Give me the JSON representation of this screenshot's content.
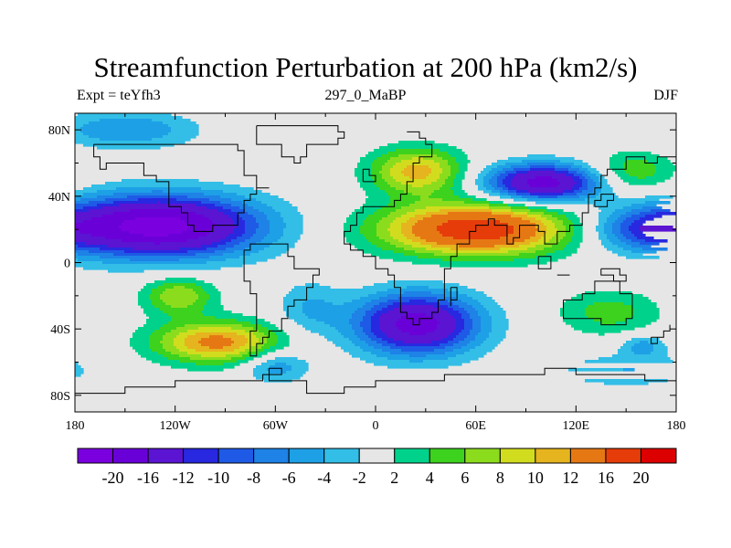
{
  "figure": {
    "title": "Streamfunction Perturbation at 200 hPa (km2/s)",
    "left_label": "Expt = teYfh3",
    "center_label": "297_0_MaBP",
    "right_label": "DJF"
  },
  "map": {
    "lon_range": [
      -180,
      180
    ],
    "lat_range": [
      -90,
      90
    ],
    "background_color": "#e6e6e6",
    "coastline_color": "#000000"
  },
  "axes": {
    "x_ticks": [
      {
        "value": -180,
        "label": "180"
      },
      {
        "value": -120,
        "label": "120W"
      },
      {
        "value": -60,
        "label": "60W"
      },
      {
        "value": 0,
        "label": "0"
      },
      {
        "value": 60,
        "label": "60E"
      },
      {
        "value": 120,
        "label": "120E"
      },
      {
        "value": 180,
        "label": "180"
      }
    ],
    "y_ticks": [
      {
        "value": 80,
        "label": "80N"
      },
      {
        "value": 40,
        "label": "40N"
      },
      {
        "value": 0,
        "label": "0"
      },
      {
        "value": -40,
        "label": "40S"
      },
      {
        "value": -80,
        "label": "80S"
      }
    ]
  },
  "colorbar": {
    "colors": [
      "#7b00e0",
      "#6a00d8",
      "#5a14d2",
      "#2828e0",
      "#1e5ae6",
      "#1e82e6",
      "#1ea0e6",
      "#32bee6",
      "#e6e6e6",
      "#00d28c",
      "#3cd21e",
      "#8cdc1e",
      "#d2dc1e",
      "#e6b41e",
      "#e67814",
      "#e63c0a",
      "#dc0000"
    ],
    "labels": [
      "-20",
      "-16",
      "-12",
      "-10",
      "-8",
      "-6",
      "-4",
      "-2",
      "2",
      "4",
      "6",
      "8",
      "10",
      "12",
      "16",
      "20"
    ]
  },
  "field": {
    "blobs": [
      {
        "lon": -130,
        "lat": 22,
        "slon": 42,
        "slat": 13,
        "amp": -22
      },
      {
        "lon": 60,
        "lat": 20,
        "slon": 40,
        "slat": 11,
        "amp": 19
      },
      {
        "lon": 25,
        "lat": 55,
        "slon": 20,
        "slat": 10,
        "amp": 11
      },
      {
        "lon": 100,
        "lat": 48,
        "slon": 24,
        "slat": 8,
        "amp": -18
      },
      {
        "lon": 25,
        "lat": -37,
        "slon": 26,
        "slat": 13,
        "amp": -18
      },
      {
        "lon": -95,
        "lat": -48,
        "slon": 27,
        "slat": 9,
        "amp": 13
      },
      {
        "lon": -118,
        "lat": -20,
        "slon": 15,
        "slat": 8,
        "amp": 8
      },
      {
        "lon": -150,
        "lat": 80,
        "slon": 30,
        "slat": 8,
        "amp": -6
      },
      {
        "lon": -60,
        "lat": -62,
        "slon": 14,
        "slat": 7,
        "amp": -6
      },
      {
        "lon": -40,
        "lat": -28,
        "slon": 14,
        "slat": 12,
        "amp": -4
      },
      {
        "lon": 160,
        "lat": 20,
        "slon": 24,
        "slat": 9,
        "amp": -8
      },
      {
        "lon": 155,
        "lat": 55,
        "slon": 18,
        "slat": 9,
        "amp": 6
      },
      {
        "lon": 140,
        "lat": -30,
        "slon": 22,
        "slat": 10,
        "amp": 5
      },
      {
        "lon": 150,
        "lat": -65,
        "slon": 30,
        "slat": 7,
        "amp": -4
      },
      {
        "lon": 160,
        "lat": -50,
        "slon": 10,
        "slat": 5,
        "amp": -5
      }
    ]
  },
  "coastlines": [
    [
      [
        20,
        80
      ],
      [
        28,
        76
      ],
      [
        30,
        70
      ],
      [
        32,
        64
      ],
      [
        26,
        60
      ],
      [
        24,
        54
      ],
      [
        22,
        48
      ],
      [
        20,
        44
      ],
      [
        18,
        42
      ],
      [
        16,
        38
      ],
      [
        14,
        36
      ],
      [
        10,
        34
      ],
      [
        0,
        32
      ],
      [
        -6,
        30
      ],
      [
        -10,
        24
      ],
      [
        -16,
        18
      ],
      [
        -18,
        12
      ],
      [
        -14,
        6
      ],
      [
        -8,
        2
      ],
      [
        0,
        -2
      ],
      [
        8,
        -6
      ],
      [
        12,
        -14
      ],
      [
        14,
        -22
      ],
      [
        16,
        -30
      ],
      [
        18,
        -34
      ],
      [
        22,
        -36
      ],
      [
        28,
        -34
      ],
      [
        32,
        -30
      ],
      [
        36,
        -24
      ],
      [
        40,
        -16
      ],
      [
        40,
        -4
      ],
      [
        44,
        2
      ],
      [
        50,
        10
      ],
      [
        56,
        18
      ],
      [
        60,
        24
      ],
      [
        66,
        26
      ],
      [
        72,
        22
      ],
      [
        78,
        10
      ],
      [
        82,
        16
      ],
      [
        88,
        22
      ],
      [
        96,
        18
      ],
      [
        100,
        12
      ],
      [
        104,
        10
      ],
      [
        110,
        18
      ],
      [
        118,
        24
      ],
      [
        122,
        30
      ],
      [
        126,
        36
      ],
      [
        128,
        42
      ],
      [
        130,
        46
      ],
      [
        136,
        52
      ],
      [
        140,
        58
      ],
      [
        150,
        62
      ],
      [
        162,
        60
      ],
      [
        170,
        64
      ],
      [
        180,
        66
      ]
    ],
    [
      [
        -170,
        70
      ],
      [
        -160,
        72
      ],
      [
        -140,
        70
      ],
      [
        -120,
        70
      ],
      [
        -100,
        70
      ],
      [
        -82,
        68
      ],
      [
        -80,
        60
      ],
      [
        -78,
        52
      ],
      [
        -70,
        46
      ],
      [
        -64,
        44
      ],
      [
        -70,
        42
      ],
      [
        -76,
        36
      ],
      [
        -80,
        30
      ],
      [
        -82,
        24
      ],
      [
        -88,
        22
      ],
      [
        -96,
        20
      ],
      [
        -104,
        18
      ],
      [
        -110,
        24
      ],
      [
        -114,
        30
      ],
      [
        -118,
        34
      ],
      [
        -124,
        40
      ],
      [
        -124,
        48
      ],
      [
        -132,
        54
      ],
      [
        -140,
        60
      ],
      [
        -150,
        60
      ],
      [
        -160,
        58
      ],
      [
        -166,
        64
      ],
      [
        -170,
        70
      ]
    ],
    [
      [
        -80,
        8
      ],
      [
        -76,
        10
      ],
      [
        -70,
        12
      ],
      [
        -62,
        10
      ],
      [
        -52,
        4
      ],
      [
        -48,
        -2
      ],
      [
        -40,
        -4
      ],
      [
        -35,
        -8
      ],
      [
        -38,
        -14
      ],
      [
        -40,
        -22
      ],
      [
        -48,
        -28
      ],
      [
        -54,
        -34
      ],
      [
        -58,
        -40
      ],
      [
        -64,
        -44
      ],
      [
        -68,
        -50
      ],
      [
        -70,
        -55
      ],
      [
        -74,
        -50
      ],
      [
        -74,
        -40
      ],
      [
        -72,
        -30
      ],
      [
        -70,
        -18
      ],
      [
        -76,
        -12
      ],
      [
        -80,
        -4
      ],
      [
        -80,
        8
      ]
    ],
    [
      [
        114,
        -22
      ],
      [
        122,
        -18
      ],
      [
        130,
        -12
      ],
      [
        136,
        -12
      ],
      [
        142,
        -11
      ],
      [
        146,
        -18
      ],
      [
        152,
        -26
      ],
      [
        153,
        -32
      ],
      [
        150,
        -37
      ],
      [
        146,
        -39
      ],
      [
        140,
        -38
      ],
      [
        134,
        -33
      ],
      [
        126,
        -32
      ],
      [
        116,
        -34
      ],
      [
        114,
        -28
      ],
      [
        114,
        -22
      ]
    ],
    [
      [
        -180,
        -78
      ],
      [
        -150,
        -76
      ],
      [
        -120,
        -73
      ],
      [
        -100,
        -73
      ],
      [
        -80,
        -72
      ],
      [
        -66,
        -68
      ],
      [
        -58,
        -64
      ],
      [
        -62,
        -72
      ],
      [
        -40,
        -78
      ],
      [
        -20,
        -74
      ],
      [
        0,
        -70
      ],
      [
        20,
        -70
      ],
      [
        40,
        -68
      ],
      [
        60,
        -67
      ],
      [
        80,
        -66
      ],
      [
        100,
        -65
      ],
      [
        120,
        -66
      ],
      [
        140,
        -67
      ],
      [
        160,
        -70
      ],
      [
        170,
        -73
      ],
      [
        180,
        -78
      ]
    ],
    [
      [
        -72,
        82
      ],
      [
        -60,
        82
      ],
      [
        -40,
        83
      ],
      [
        -22,
        80
      ],
      [
        -18,
        76
      ],
      [
        -22,
        70
      ],
      [
        -40,
        64
      ],
      [
        -44,
        60
      ],
      [
        -50,
        64
      ],
      [
        -56,
        70
      ],
      [
        -70,
        78
      ],
      [
        -72,
        82
      ]
    ],
    [
      [
        166,
        -46
      ],
      [
        172,
        -42
      ],
      [
        176,
        -38
      ],
      [
        178,
        -40
      ],
      [
        174,
        -44
      ],
      [
        168,
        -47
      ],
      [
        166,
        -46
      ]
    ],
    [
      [
        44,
        -14
      ],
      [
        50,
        -14
      ],
      [
        50,
        -22
      ],
      [
        46,
        -25
      ],
      [
        44,
        -20
      ],
      [
        44,
        -14
      ]
    ],
    [
      [
        130,
        32
      ],
      [
        135,
        34
      ],
      [
        140,
        36
      ],
      [
        142,
        40
      ],
      [
        140,
        42
      ],
      [
        136,
        38
      ],
      [
        130,
        32
      ]
    ],
    [
      [
        -6,
        50
      ],
      [
        0,
        52
      ],
      [
        -2,
        56
      ],
      [
        -5,
        58
      ],
      [
        -6,
        54
      ],
      [
        -6,
        50
      ]
    ],
    [
      [
        96,
        5
      ],
      [
        100,
        2
      ],
      [
        105,
        -5
      ],
      [
        102,
        -4
      ],
      [
        98,
        0
      ],
      [
        96,
        5
      ]
    ],
    [
      [
        110,
        -7
      ],
      [
        115,
        -8
      ],
      [
        112,
        -8
      ],
      [
        110,
        -7
      ]
    ],
    [
      [
        134,
        -3
      ],
      [
        140,
        -3
      ],
      [
        146,
        -6
      ],
      [
        150,
        -10
      ],
      [
        142,
        -9
      ],
      [
        138,
        -8
      ],
      [
        134,
        -3
      ]
    ]
  ]
}
